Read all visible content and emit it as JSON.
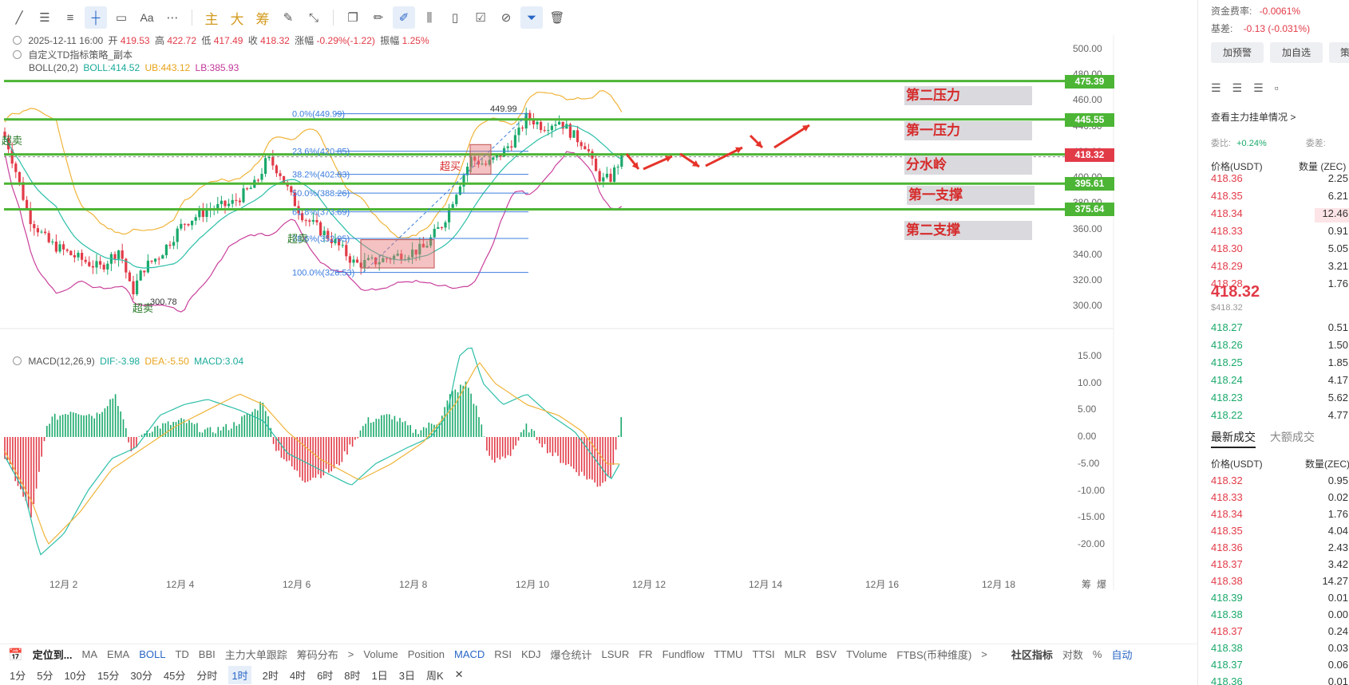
{
  "toolbar": {
    "icons": [
      "line-tool-icon",
      "parallel-line-icon",
      "horizontal-line-icon",
      "ray-icon",
      "rectangle-icon",
      "text-tool-icon",
      "more-tools-icon"
    ],
    "text_buttons": [
      "主",
      "大",
      "筹"
    ],
    "right_icons": [
      "copy-icon",
      "pencil-icon",
      "brush-icon",
      "candles-icon",
      "clipboard-icon",
      "note-icon",
      "magnet-icon",
      "filter-icon",
      "trash-icon"
    ]
  },
  "legend": {
    "ohlc_date": "2025-12-11 16:00",
    "open_label": "开",
    "open": "419.53",
    "high_label": "高",
    "high": "422.72",
    "low_label": "低",
    "low": "417.49",
    "close_label": "收",
    "close": "418.32",
    "change_label": "涨幅",
    "change": "-0.29%(-1.22)",
    "amp_label": "振幅",
    "amp": "1.25%",
    "strategy": "自定义TD指标策略_副本",
    "boll_name": "BOLL(20,2)",
    "boll": "BOLL:414.52",
    "ub": "UB:443.12",
    "lb": "LB:385.93",
    "macd_name": "MACD(12,26,9)",
    "dif": "DIF:-3.98",
    "dea": "DEA:-5.50",
    "macd": "MACD:3.04"
  },
  "price_axis": [
    "500.00",
    "480.00",
    "460.00",
    "440.00",
    "420.00",
    "400.00",
    "380.00",
    "360.00",
    "340.00",
    "320.00",
    "300.00"
  ],
  "macd_axis": [
    "15.00",
    "10.00",
    "5.00",
    "0.00",
    "-5.00",
    "-10.00",
    "-15.00",
    "-20.00"
  ],
  "time_axis": [
    "12月 2",
    "12月 4",
    "12月 6",
    "12月 8",
    "12月 10",
    "12月 12",
    "12月 14",
    "12月 16",
    "12月 18"
  ],
  "axis_corner": [
    "筹",
    "爆"
  ],
  "levels": [
    {
      "label": "第二压力",
      "price": "475.39"
    },
    {
      "label": "第一压力",
      "price": "445.55"
    },
    {
      "label": "分水岭",
      "price": "418.32"
    },
    {
      "label": "第一支撑",
      "price": "395.61"
    },
    {
      "label": "第二支撑",
      "price": "375.64"
    }
  ],
  "fib": [
    "0.0%(449.99)",
    "23.6%(420.85)",
    "38.2%(402.83)",
    "50.0%(388.26)",
    "61.8%(373.69)",
    "78.6%(352.95)",
    "100.0%(326.53)"
  ],
  "chart_text": {
    "high_mark": "449.99",
    "low_mark": "300.78",
    "overbuy": "超买",
    "oversell": "超卖"
  },
  "indicator_bar": [
    "定位到...",
    "MA",
    "EMA",
    "BOLL",
    "TD",
    "BBI",
    "主力大单跟踪",
    "筹码分布",
    ">",
    "Volume",
    "Position",
    "MACD",
    "RSI",
    "KDJ",
    "爆仓统计",
    "LSUR",
    "FR",
    "Fundflow",
    "TTMU",
    "TTSI",
    "MLR",
    "BSV",
    "TVolume",
    "FTBS(币种维度)",
    ">"
  ],
  "indicator_right": [
    "社区指标",
    "对数",
    "%",
    "自动"
  ],
  "timeframes": [
    "1分",
    "5分",
    "10分",
    "15分",
    "30分",
    "45分",
    "分时",
    "1时",
    "2时",
    "4时",
    "6时",
    "8时",
    "1日",
    "3日",
    "周K",
    "✕"
  ],
  "active_timeframe": "1时",
  "right_panel": {
    "funding_label": "资金费率:",
    "funding": "-0.0061%",
    "basis_label": "基差:",
    "basis": "-0.13 (-0.031%)",
    "btn_alert": "加预警",
    "btn_fav": "加自选",
    "btn_strategy": "策",
    "orderbook_link": "查看主力挂单情况 >",
    "ratio_label": "委比:",
    "ratio": "+0.24%",
    "diff_label": "委差:",
    "col_price": "价格(USDT)",
    "col_qty": "数量 (ZEC)",
    "asks": [
      {
        "p": "418.36",
        "q": "2.25"
      },
      {
        "p": "418.35",
        "q": "6.21"
      },
      {
        "p": "418.34",
        "q": "12.46"
      },
      {
        "p": "418.33",
        "q": "0.91"
      },
      {
        "p": "418.30",
        "q": "5.05"
      },
      {
        "p": "418.29",
        "q": "3.21"
      },
      {
        "p": "418.28",
        "q": "1.76"
      }
    ],
    "last_price": "418.32",
    "last_price_usd": "$418.32",
    "bids": [
      {
        "p": "418.27",
        "q": "0.51"
      },
      {
        "p": "418.26",
        "q": "1.50"
      },
      {
        "p": "418.25",
        "q": "1.85"
      },
      {
        "p": "418.24",
        "q": "4.17"
      },
      {
        "p": "418.23",
        "q": "5.62"
      },
      {
        "p": "418.22",
        "q": "4.77"
      }
    ],
    "tab_trades": "最新成交",
    "tab_big": "大额成交",
    "trades_price_col": "价格(USDT)",
    "trades_qty_col": "数量(ZEC)",
    "trades": [
      {
        "p": "418.32",
        "q": "0.95",
        "side": "sell"
      },
      {
        "p": "418.33",
        "q": "0.02",
        "side": "sell"
      },
      {
        "p": "418.34",
        "q": "1.76",
        "side": "sell"
      },
      {
        "p": "418.35",
        "q": "4.04",
        "side": "sell"
      },
      {
        "p": "418.36",
        "q": "2.43",
        "side": "sell"
      },
      {
        "p": "418.37",
        "q": "3.42",
        "side": "sell"
      },
      {
        "p": "418.38",
        "q": "14.27",
        "side": "sell"
      },
      {
        "p": "418.39",
        "q": "0.01",
        "side": "buy"
      },
      {
        "p": "418.38",
        "q": "0.00",
        "side": "buy"
      },
      {
        "p": "418.37",
        "q": "0.24",
        "side": "sell"
      },
      {
        "p": "418.38",
        "q": "0.03",
        "side": "buy"
      },
      {
        "p": "418.37",
        "q": "0.06",
        "side": "buy"
      },
      {
        "p": "418.36",
        "q": "0.01",
        "side": "grn"
      }
    ]
  }
}
